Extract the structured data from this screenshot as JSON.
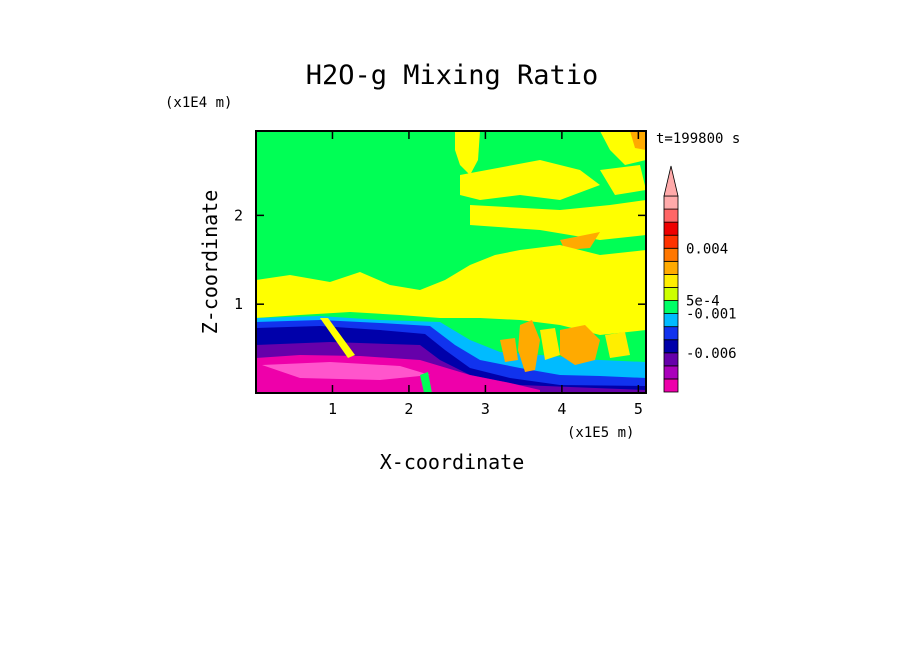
{
  "chart_data": {
    "type": "heatmap",
    "title": "H2O-g Mixing Ratio",
    "xlabel": "X-coordinate",
    "ylabel": "Z-coordinate",
    "x_scale_label": "(x1E5 m)",
    "y_scale_label": "(x1E4 m)",
    "time_label": "t=199800 s",
    "xlim": [
      0,
      5.1
    ],
    "ylim": [
      0,
      2.95
    ],
    "xticks": [
      1,
      2,
      3,
      4,
      5
    ],
    "yticks": [
      1,
      2
    ],
    "colorbar": {
      "levels": [
        "0.004",
        "5e-4",
        "-0.001",
        "-0.006"
      ],
      "colors": [
        "#ee00aa",
        "#aa00bb",
        "#6600aa",
        "#0000aa",
        "#1133ee",
        "#00bbff",
        "#00ff66",
        "#ccff00",
        "#ffee00",
        "#ffaa00",
        "#ff7700",
        "#ff3300",
        "#ee0000",
        "#ff6666",
        "#ffaaaa"
      ],
      "extend": "max"
    },
    "regions": [
      {
        "name": "background",
        "value": 0.0002,
        "color": "#00ff55"
      },
      {
        "name": "lower-mid-band",
        "value": 0.0008,
        "color": "#ffff00"
      },
      {
        "name": "surface-layer",
        "value": -0.006,
        "color": "#ee00aa"
      },
      {
        "name": "boundary-layer",
        "value": -0.003,
        "color": "#0000aa"
      },
      {
        "name": "convective-cores",
        "value": 0.002,
        "color": "#ffaa00"
      }
    ]
  }
}
